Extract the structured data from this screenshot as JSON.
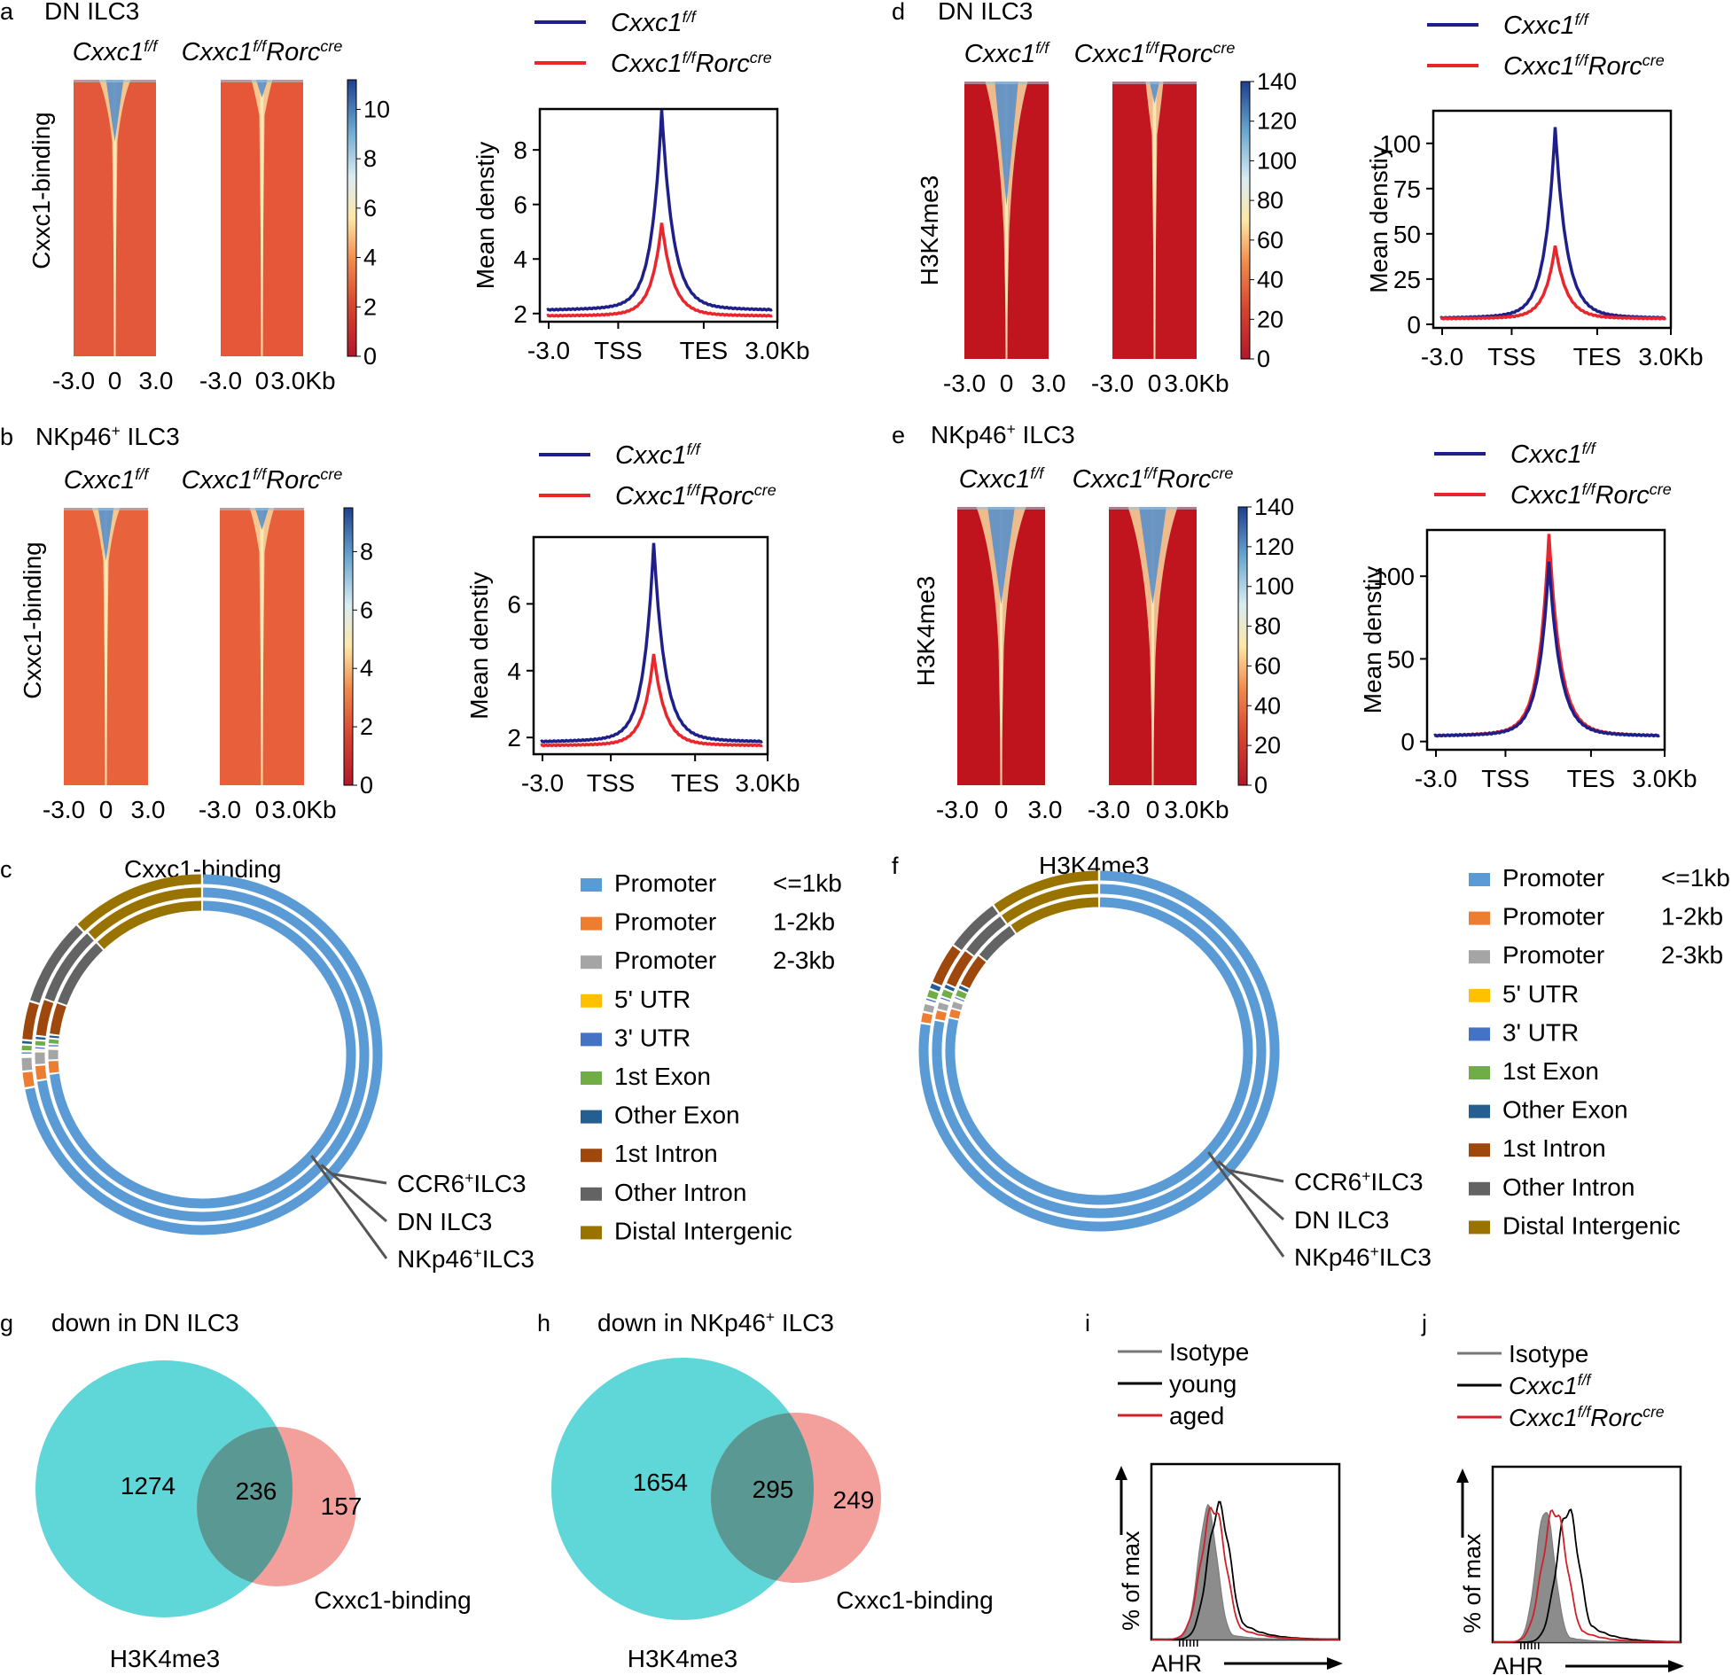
{
  "colors": {
    "wt": "#1f1f8a",
    "ko": "#e8262c",
    "teal": "#5fd6d8",
    "pink": "#f3a09d",
    "overlap": "#5a9893"
  },
  "labels": {
    "wt_gene": "Cxxc1",
    "wt_sup": "f/f",
    "ko_gene": "Cxxc1",
    "ko_sup": "f/f",
    "ko_rorc": "Rorc",
    "ko_cre": "cre"
  },
  "panels": {
    "a": {
      "letter": "a",
      "title": "DN ILC3",
      "ylabel": "Cxxc1-binding"
    },
    "b": {
      "letter": "b",
      "title_pre": "NKp46",
      "title_sup": "+",
      "title_post": " ILC3",
      "ylabel": "Cxxc1-binding"
    },
    "c": {
      "letter": "c",
      "title": "Cxxc1-binding"
    },
    "d": {
      "letter": "d",
      "title": "DN ILC3",
      "ylabel": "H3K4me3"
    },
    "e": {
      "letter": "e",
      "title_pre": "NKp46",
      "title_sup": "+",
      "title_post": " ILC3",
      "ylabel": "H3K4me3"
    },
    "f": {
      "letter": "f",
      "title": "H3K4me3"
    },
    "g": {
      "letter": "g",
      "title": "down in DN ILC3"
    },
    "h": {
      "letter": "h",
      "title_pre": "down in NKp46",
      "title_sup": "+",
      "title_post": " ILC3"
    },
    "i": {
      "letter": "i"
    },
    "j": {
      "letter": "j"
    }
  },
  "chart_data": [
    {
      "id": "a-heatmap",
      "type": "heatmap",
      "xticks": [
        "-3.0",
        "0",
        "3.0",
        "-3.0",
        "0",
        "3.0Kb"
      ],
      "colorbar": {
        "ticks": [
          "0",
          "2",
          "4",
          "6",
          "8",
          "10"
        ],
        "range": [
          0,
          11.2
        ]
      }
    },
    {
      "id": "a-profile",
      "type": "line",
      "xticks": [
        "-3.0",
        "TSS",
        "TES",
        "3.0Kb"
      ],
      "ylabel": "Mean denstiy",
      "yticks": [
        2,
        4,
        6,
        8
      ],
      "ylim": [
        1.7,
        9.5
      ],
      "series": [
        {
          "name": "Cxxc1 f/f",
          "baseline": 2.1,
          "peak": 9.2
        },
        {
          "name": "Cxxc1 f/f Rorc cre",
          "baseline": 1.9,
          "peak": 5.2
        }
      ]
    },
    {
      "id": "b-heatmap",
      "type": "heatmap",
      "xticks": [
        "-3.0",
        "0",
        "3.0",
        "-3.0",
        "0",
        "3.0Kb"
      ],
      "colorbar": {
        "ticks": [
          "0",
          "2",
          "4",
          "6",
          "8"
        ],
        "range": [
          0,
          9.5
        ]
      }
    },
    {
      "id": "b-profile",
      "type": "line",
      "xticks": [
        "-3.0",
        "TSS",
        "TES",
        "3.0Kb"
      ],
      "ylabel": "Mean denstiy",
      "yticks": [
        2,
        4,
        6
      ],
      "ylim": [
        1.5,
        8.0
      ],
      "series": [
        {
          "name": "Cxxc1 f/f",
          "baseline": 1.85,
          "peak": 7.6
        },
        {
          "name": "Cxxc1 f/f Rorc cre",
          "baseline": 1.75,
          "peak": 4.4
        }
      ]
    },
    {
      "id": "d-heatmap",
      "type": "heatmap",
      "xticks": [
        "-3.0",
        "0",
        "3.0",
        "-3.0",
        "0",
        "3.0Kb"
      ],
      "colorbar": {
        "ticks": [
          "0",
          "20",
          "40",
          "60",
          "80",
          "100",
          "120",
          "140"
        ],
        "range": [
          0,
          140
        ]
      }
    },
    {
      "id": "d-profile",
      "type": "line",
      "xticks": [
        "-3.0",
        "TSS",
        "TES",
        "3.0Kb"
      ],
      "ylabel": "Mean denstiy",
      "yticks": [
        0,
        25,
        50,
        75,
        100
      ],
      "ylim": [
        -2,
        118
      ],
      "series": [
        {
          "name": "Cxxc1 f/f",
          "baseline": 3,
          "peak": 105
        },
        {
          "name": "Cxxc1 f/f Rorc cre",
          "baseline": 3,
          "peak": 42
        }
      ]
    },
    {
      "id": "e-heatmap",
      "type": "heatmap",
      "xticks": [
        "-3.0",
        "0",
        "3.0",
        "-3.0",
        "0",
        "3.0Kb"
      ],
      "colorbar": {
        "ticks": [
          "0",
          "20",
          "40",
          "60",
          "80",
          "100",
          "120",
          "140"
        ],
        "range": [
          0,
          140
        ]
      }
    },
    {
      "id": "e-profile",
      "type": "line",
      "xticks": [
        "-3.0",
        "TSS",
        "TES",
        "3.0Kb"
      ],
      "ylabel": "Mean denstiy",
      "yticks": [
        0,
        50,
        100
      ],
      "ylim": [
        -5,
        128
      ],
      "series": [
        {
          "name": "Cxxc1 f/f",
          "baseline": 3,
          "peak": 105
        },
        {
          "name": "Cxxc1 f/f Rorc cre",
          "baseline": 3,
          "peak": 121
        }
      ]
    },
    {
      "id": "c-annotation",
      "type": "pie",
      "rings": [
        "CCR6+ILC3",
        "DN ILC3",
        "NKp46+ILC3"
      ],
      "ring_labels": [
        {
          "pre": "CCR6",
          "sup": "+",
          "post": "ILC3"
        },
        {
          "pre": "DN ILC3",
          "sup": "",
          "post": ""
        },
        {
          "pre": "NKp46",
          "sup": "+",
          "post": "ILC3"
        }
      ],
      "categories": [
        "Promoter (<=1kb)",
        "Promoter (1-2kb)",
        "Promoter (2-3kb)",
        "5' UTR",
        "3' UTR",
        "1st Exon",
        "Other Exon",
        "1st Intron",
        "Other Intron",
        "Distal Intergenic"
      ],
      "series": [
        {
          "name": "CCR6+ILC3",
          "values": [
            72.0,
            1.5,
            1.3,
            0.2,
            0.3,
            0.6,
            0.4,
            3.5,
            8.0,
            12.2
          ]
        },
        {
          "name": "DN ILC3",
          "values": [
            72.5,
            1.5,
            1.3,
            0.2,
            0.3,
            0.6,
            0.4,
            3.6,
            7.6,
            12.0
          ]
        },
        {
          "name": "NKp46+ILC3",
          "values": [
            73.0,
            1.4,
            1.2,
            0.2,
            0.3,
            0.6,
            0.4,
            3.4,
            7.5,
            12.0
          ]
        }
      ]
    },
    {
      "id": "f-annotation",
      "type": "pie",
      "rings": [
        "CCR6+ILC3",
        "DN ILC3",
        "NKp46+ILC3"
      ],
      "ring_labels": [
        {
          "pre": "CCR6",
          "sup": "+",
          "post": "ILC3"
        },
        {
          "pre": "DN ILC3",
          "sup": "",
          "post": ""
        },
        {
          "pre": "NKp46",
          "sup": "+",
          "post": "ILC3"
        }
      ],
      "categories": [
        "Promoter (<=1kb)",
        "Promoter (1-2kb)",
        "Promoter (2-3kb)",
        "5' UTR",
        "3' UTR",
        "1st Exon",
        "Other Exon",
        "1st Intron",
        "Other Intron",
        "Distal Intergenic"
      ],
      "series": [
        {
          "name": "CCR6+ILC3",
          "values": [
            77.5,
            1.0,
            0.8,
            0.2,
            0.3,
            0.8,
            0.6,
            3.8,
            5.0,
            10.0
          ]
        },
        {
          "name": "DN ILC3",
          "values": [
            78.0,
            1.0,
            0.8,
            0.2,
            0.3,
            0.8,
            0.5,
            3.7,
            4.7,
            10.0
          ]
        },
        {
          "name": "NKp46+ILC3",
          "values": [
            78.5,
            1.0,
            0.8,
            0.2,
            0.3,
            0.8,
            0.5,
            3.6,
            4.5,
            9.8
          ]
        }
      ]
    },
    {
      "id": "legend-cf",
      "items": [
        {
          "label": "Promoter",
          "extra": "<=1kb",
          "color": "#5b9bd5"
        },
        {
          "label": "Promoter",
          "extra": "1-2kb",
          "color": "#ed7d31"
        },
        {
          "label": "Promoter",
          "extra": "2-3kb",
          "color": "#a5a5a5"
        },
        {
          "label": "5' UTR",
          "extra": "",
          "color": "#ffc000"
        },
        {
          "label": "3' UTR",
          "extra": "",
          "color": "#4472c4"
        },
        {
          "label": "1st Exon",
          "extra": "",
          "color": "#70ad47"
        },
        {
          "label": "Other Exon",
          "extra": "",
          "color": "#255e91"
        },
        {
          "label": "1st Intron",
          "extra": "",
          "color": "#9e480e"
        },
        {
          "label": "Other Intron",
          "extra": "",
          "color": "#636363"
        },
        {
          "label": "Distal Intergenic",
          "extra": "",
          "color": "#997300"
        }
      ]
    },
    {
      "id": "g-venn",
      "type": "venn",
      "sets": [
        "H3K4me3",
        "Cxxc1-binding"
      ],
      "values": {
        "left_only": 1274,
        "overlap": 236,
        "right_only": 157
      }
    },
    {
      "id": "h-venn",
      "type": "venn",
      "sets": [
        "H3K4me3",
        "Cxxc1-binding"
      ],
      "values": {
        "left_only": 1654,
        "overlap": 295,
        "right_only": 249
      }
    },
    {
      "id": "i-histogram",
      "type": "area",
      "xlabel": "AHR",
      "ylabel": "% of max",
      "series": [
        {
          "name": "Isotype",
          "color": "#777777",
          "mode": 0.3
        },
        {
          "name": "young",
          "color": "#000000",
          "mode": 0.36
        },
        {
          "name": "aged",
          "color": "#d0202a",
          "mode": 0.33
        }
      ]
    },
    {
      "id": "j-histogram",
      "type": "area",
      "xlabel": "AHR",
      "ylabel": "% of max",
      "series": [
        {
          "name": "Isotype",
          "color": "#777777",
          "mode": 0.28
        },
        {
          "name": "Cxxc1 f/f",
          "color": "#000000",
          "mode": 0.4
        },
        {
          "name": "Cxxc1 f/f Rorc cre",
          "color": "#d0202a",
          "mode": 0.33
        }
      ]
    }
  ]
}
